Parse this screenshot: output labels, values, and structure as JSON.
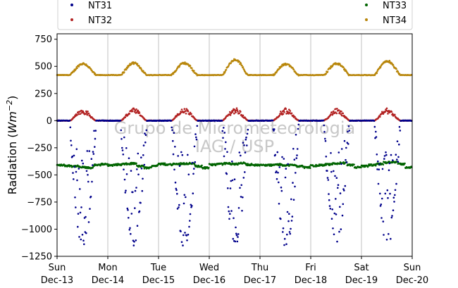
{
  "chart_data": {
    "type": "scatter",
    "ylabel": "Radiation (Wm⁻²)",
    "ylabel_base": "Radiation (",
    "ylabel_unit_main": "Wm",
    "ylabel_unit_exp": "−2",
    "ylabel_close": ")",
    "ylim": [
      -1250,
      800
    ],
    "yticks": [
      -1250,
      -1000,
      -750,
      -500,
      -250,
      0,
      250,
      500,
      750
    ],
    "ytick_labels": [
      "−1250",
      "−1000",
      "−750",
      "−500",
      "−250",
      "0",
      "250",
      "500",
      "750"
    ],
    "xlim": [
      "2020-12-13",
      "2020-12-20"
    ],
    "xticks": [
      {
        "day": "Sun",
        "date": "Dec-13"
      },
      {
        "day": "Mon",
        "date": "Dec-14"
      },
      {
        "day": "Tue",
        "date": "Dec-15"
      },
      {
        "day": "Wed",
        "date": "Dec-16"
      },
      {
        "day": "Thu",
        "date": "Dec-17"
      },
      {
        "day": "Fri",
        "date": "Dec-18"
      },
      {
        "day": "Sat",
        "date": "Dec-19"
      },
      {
        "day": "Sun",
        "date": "Dec-20"
      }
    ],
    "grid": "vertical",
    "legend_position": "top",
    "series": [
      {
        "name": "NT31",
        "color": "#00008b",
        "description_points": [
          {
            "day": 0,
            "hour": 0,
            "value": 0
          },
          {
            "day": 0,
            "hour": 7,
            "value": -250
          },
          {
            "day": 0,
            "hour": 9,
            "value": -800
          },
          {
            "day": 0,
            "hour": 10,
            "value": -1100
          },
          {
            "day": 0,
            "hour": 11,
            "value": -1200
          },
          {
            "day": 0,
            "hour": 13,
            "value": -900
          },
          {
            "day": 0,
            "hour": 15,
            "value": -500
          },
          {
            "day": 0,
            "hour": 17,
            "value": -150
          },
          {
            "day": 0,
            "hour": 19,
            "value": 0
          }
        ],
        "daily_min": [
          -1200,
          -1210,
          -1180,
          -1170,
          -1220,
          -1150,
          -1180
        ]
      },
      {
        "name": "NT32",
        "color": "#b22222",
        "baseline": 0,
        "daily_max": [
          110,
          115,
          115,
          120,
          115,
          110,
          115
        ]
      },
      {
        "name": "NT33",
        "color": "#006400",
        "baseline": -410,
        "daily_values": [
          [
            -410,
            -415,
            -420,
            -430,
            -435,
            -410,
            -400
          ],
          [
            -410,
            -405,
            -400,
            -395,
            -420,
            -435,
            -415
          ],
          [
            -400,
            -405,
            -400,
            -395,
            -395,
            -420,
            -435
          ],
          [
            -405,
            -400,
            -395,
            -400,
            -390,
            -405,
            -410
          ],
          [
            -410,
            -410,
            -405,
            -410,
            -410,
            -420,
            -430
          ],
          [
            -415,
            -410,
            -405,
            -395,
            -390,
            -410,
            -430
          ],
          [
            -420,
            -410,
            -400,
            -385,
            -380,
            -400,
            -430
          ]
        ]
      },
      {
        "name": "NT34",
        "color": "#b8860b",
        "baseline": 420,
        "daily_max": [
          525,
          530,
          530,
          560,
          520,
          525,
          550
        ]
      }
    ],
    "watermark": [
      "Grupo de Micrometeorologia",
      "IAG / USP"
    ]
  }
}
